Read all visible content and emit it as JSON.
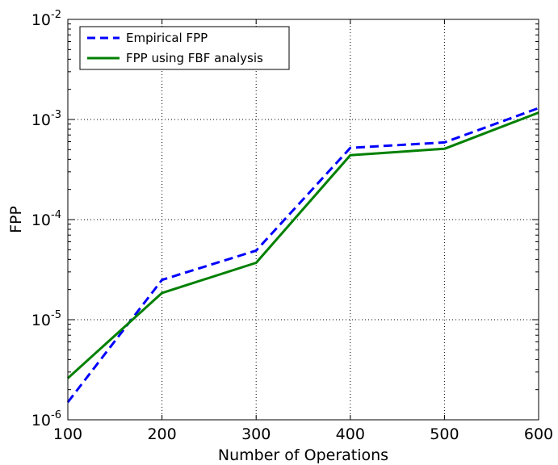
{
  "chart_data": {
    "type": "line",
    "title": "",
    "xlabel": "Number of Operations",
    "ylabel": "FPP",
    "x": [
      100,
      200,
      300,
      400,
      500,
      600
    ],
    "xlim": [
      100,
      600
    ],
    "ylim": [
      1e-06,
      0.01
    ],
    "yscale": "log",
    "grid": true,
    "legend_position": "top-left",
    "x_ticks": [
      "100",
      "200",
      "300",
      "400",
      "500",
      "600"
    ],
    "y_ticks": [
      {
        "base": "10",
        "exp": "-6"
      },
      {
        "base": "10",
        "exp": "-5"
      },
      {
        "base": "10",
        "exp": "-4"
      },
      {
        "base": "10",
        "exp": "-3"
      },
      {
        "base": "10",
        "exp": "-2"
      }
    ],
    "series": [
      {
        "name": "Empirical FPP",
        "values": [
          1.5e-06,
          2.5e-05,
          4.9e-05,
          0.00052,
          0.00059,
          0.0013
        ],
        "color": "#0000ff",
        "style": "dashed"
      },
      {
        "name": "FPP using FBF analysis",
        "values": [
          2.6e-06,
          1.85e-05,
          3.7e-05,
          0.00044,
          0.00051,
          0.00117
        ],
        "color": "#008000",
        "style": "solid"
      }
    ]
  }
}
